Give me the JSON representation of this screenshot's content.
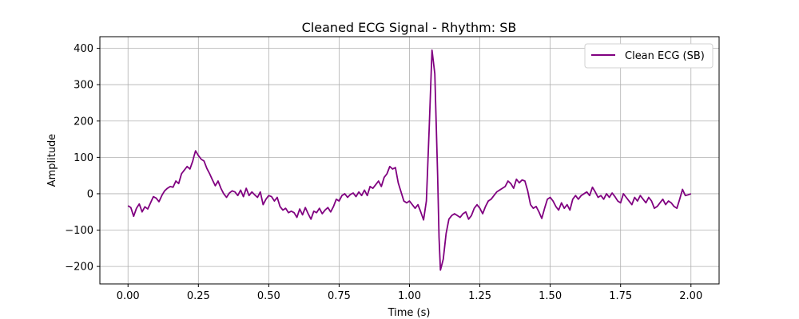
{
  "chart_data": {
    "type": "line",
    "title": "Cleaned ECG Signal - Rhythm: SB",
    "xlabel": "Time (s)",
    "ylabel": "Amplitude",
    "xlim": [
      -0.1,
      2.1
    ],
    "ylim": [
      -248,
      432
    ],
    "x_ticks": [
      0.0,
      0.25,
      0.5,
      0.75,
      1.0,
      1.25,
      1.5,
      1.75,
      2.0
    ],
    "x_tick_labels": [
      "0.00",
      "0.25",
      "0.50",
      "0.75",
      "1.00",
      "1.25",
      "1.50",
      "1.75",
      "2.00"
    ],
    "y_ticks": [
      -200,
      -100,
      0,
      100,
      200,
      300,
      400
    ],
    "y_tick_labels": [
      "−200",
      "−100",
      "0",
      "100",
      "200",
      "300",
      "400"
    ],
    "grid": true,
    "legend_position": "top-right",
    "color": "#800080",
    "series": [
      {
        "name": "Clean ECG (SB)",
        "points": [
          [
            0.0,
            -33
          ],
          [
            0.01,
            -38
          ],
          [
            0.02,
            -62
          ],
          [
            0.03,
            -40
          ],
          [
            0.04,
            -28
          ],
          [
            0.05,
            -50
          ],
          [
            0.06,
            -36
          ],
          [
            0.07,
            -42
          ],
          [
            0.08,
            -25
          ],
          [
            0.09,
            -8
          ],
          [
            0.1,
            -12
          ],
          [
            0.11,
            -22
          ],
          [
            0.12,
            -5
          ],
          [
            0.13,
            8
          ],
          [
            0.14,
            15
          ],
          [
            0.15,
            20
          ],
          [
            0.16,
            18
          ],
          [
            0.17,
            35
          ],
          [
            0.18,
            28
          ],
          [
            0.19,
            55
          ],
          [
            0.2,
            65
          ],
          [
            0.21,
            75
          ],
          [
            0.22,
            68
          ],
          [
            0.23,
            90
          ],
          [
            0.235,
            105
          ],
          [
            0.24,
            118
          ],
          [
            0.25,
            105
          ],
          [
            0.26,
            95
          ],
          [
            0.27,
            90
          ],
          [
            0.28,
            70
          ],
          [
            0.29,
            55
          ],
          [
            0.3,
            38
          ],
          [
            0.31,
            22
          ],
          [
            0.32,
            35
          ],
          [
            0.33,
            15
          ],
          [
            0.34,
            0
          ],
          [
            0.35,
            -10
          ],
          [
            0.36,
            2
          ],
          [
            0.37,
            8
          ],
          [
            0.38,
            5
          ],
          [
            0.39,
            -5
          ],
          [
            0.4,
            10
          ],
          [
            0.41,
            -8
          ],
          [
            0.42,
            15
          ],
          [
            0.43,
            -5
          ],
          [
            0.44,
            5
          ],
          [
            0.45,
            -3
          ],
          [
            0.46,
            -10
          ],
          [
            0.47,
            5
          ],
          [
            0.48,
            -30
          ],
          [
            0.49,
            -15
          ],
          [
            0.5,
            -5
          ],
          [
            0.51,
            -8
          ],
          [
            0.52,
            -20
          ],
          [
            0.53,
            -10
          ],
          [
            0.54,
            -35
          ],
          [
            0.55,
            -45
          ],
          [
            0.56,
            -40
          ],
          [
            0.57,
            -52
          ],
          [
            0.58,
            -48
          ],
          [
            0.59,
            -52
          ],
          [
            0.6,
            -65
          ],
          [
            0.61,
            -42
          ],
          [
            0.62,
            -58
          ],
          [
            0.63,
            -38
          ],
          [
            0.64,
            -55
          ],
          [
            0.65,
            -70
          ],
          [
            0.66,
            -48
          ],
          [
            0.67,
            -52
          ],
          [
            0.68,
            -40
          ],
          [
            0.69,
            -55
          ],
          [
            0.7,
            -45
          ],
          [
            0.71,
            -38
          ],
          [
            0.72,
            -50
          ],
          [
            0.73,
            -35
          ],
          [
            0.74,
            -15
          ],
          [
            0.75,
            -20
          ],
          [
            0.76,
            -5
          ],
          [
            0.77,
            0
          ],
          [
            0.78,
            -10
          ],
          [
            0.79,
            -2
          ],
          [
            0.8,
            2
          ],
          [
            0.81,
            -8
          ],
          [
            0.82,
            5
          ],
          [
            0.83,
            -5
          ],
          [
            0.84,
            10
          ],
          [
            0.85,
            -5
          ],
          [
            0.86,
            20
          ],
          [
            0.87,
            15
          ],
          [
            0.88,
            25
          ],
          [
            0.89,
            35
          ],
          [
            0.9,
            20
          ],
          [
            0.91,
            45
          ],
          [
            0.92,
            55
          ],
          [
            0.93,
            75
          ],
          [
            0.94,
            68
          ],
          [
            0.95,
            72
          ],
          [
            0.96,
            30
          ],
          [
            0.97,
            5
          ],
          [
            0.98,
            -20
          ],
          [
            0.99,
            -25
          ],
          [
            1.0,
            -20
          ],
          [
            1.01,
            -30
          ],
          [
            1.02,
            -40
          ],
          [
            1.03,
            -30
          ],
          [
            1.04,
            -50
          ],
          [
            1.05,
            -72
          ],
          [
            1.06,
            -20
          ],
          [
            1.07,
            180
          ],
          [
            1.08,
            395
          ],
          [
            1.09,
            330
          ],
          [
            1.1,
            50
          ],
          [
            1.105,
            -120
          ],
          [
            1.11,
            -210
          ],
          [
            1.12,
            -180
          ],
          [
            1.13,
            -110
          ],
          [
            1.14,
            -70
          ],
          [
            1.15,
            -60
          ],
          [
            1.16,
            -55
          ],
          [
            1.17,
            -60
          ],
          [
            1.18,
            -65
          ],
          [
            1.19,
            -55
          ],
          [
            1.2,
            -50
          ],
          [
            1.21,
            -70
          ],
          [
            1.22,
            -60
          ],
          [
            1.23,
            -40
          ],
          [
            1.24,
            -30
          ],
          [
            1.25,
            -40
          ],
          [
            1.26,
            -55
          ],
          [
            1.27,
            -35
          ],
          [
            1.28,
            -20
          ],
          [
            1.29,
            -15
          ],
          [
            1.3,
            -5
          ],
          [
            1.31,
            5
          ],
          [
            1.32,
            10
          ],
          [
            1.33,
            15
          ],
          [
            1.34,
            20
          ],
          [
            1.35,
            35
          ],
          [
            1.36,
            28
          ],
          [
            1.37,
            15
          ],
          [
            1.38,
            40
          ],
          [
            1.39,
            30
          ],
          [
            1.4,
            38
          ],
          [
            1.41,
            35
          ],
          [
            1.42,
            8
          ],
          [
            1.43,
            -30
          ],
          [
            1.44,
            -40
          ],
          [
            1.45,
            -35
          ],
          [
            1.46,
            -50
          ],
          [
            1.47,
            -68
          ],
          [
            1.48,
            -40
          ],
          [
            1.49,
            -15
          ],
          [
            1.5,
            -10
          ],
          [
            1.51,
            -20
          ],
          [
            1.52,
            -35
          ],
          [
            1.53,
            -45
          ],
          [
            1.54,
            -25
          ],
          [
            1.55,
            -40
          ],
          [
            1.56,
            -30
          ],
          [
            1.57,
            -45
          ],
          [
            1.58,
            -15
          ],
          [
            1.59,
            -5
          ],
          [
            1.6,
            -15
          ],
          [
            1.61,
            -5
          ],
          [
            1.62,
            0
          ],
          [
            1.63,
            5
          ],
          [
            1.64,
            -5
          ],
          [
            1.65,
            18
          ],
          [
            1.66,
            5
          ],
          [
            1.67,
            -10
          ],
          [
            1.68,
            -5
          ],
          [
            1.69,
            -15
          ],
          [
            1.7,
            0
          ],
          [
            1.71,
            -10
          ],
          [
            1.72,
            2
          ],
          [
            1.73,
            -8
          ],
          [
            1.74,
            -20
          ],
          [
            1.75,
            -25
          ],
          [
            1.76,
            0
          ],
          [
            1.77,
            -10
          ],
          [
            1.78,
            -20
          ],
          [
            1.79,
            -30
          ],
          [
            1.8,
            -10
          ],
          [
            1.81,
            -20
          ],
          [
            1.82,
            -5
          ],
          [
            1.83,
            -15
          ],
          [
            1.84,
            -25
          ],
          [
            1.85,
            -10
          ],
          [
            1.86,
            -20
          ],
          [
            1.87,
            -40
          ],
          [
            1.88,
            -35
          ],
          [
            1.89,
            -25
          ],
          [
            1.9,
            -15
          ],
          [
            1.91,
            -30
          ],
          [
            1.92,
            -20
          ],
          [
            1.93,
            -25
          ],
          [
            1.94,
            -35
          ],
          [
            1.95,
            -40
          ],
          [
            1.96,
            -15
          ],
          [
            1.97,
            12
          ],
          [
            1.98,
            -5
          ],
          [
            1.99,
            -3
          ],
          [
            2.0,
            0
          ]
        ]
      }
    ]
  }
}
